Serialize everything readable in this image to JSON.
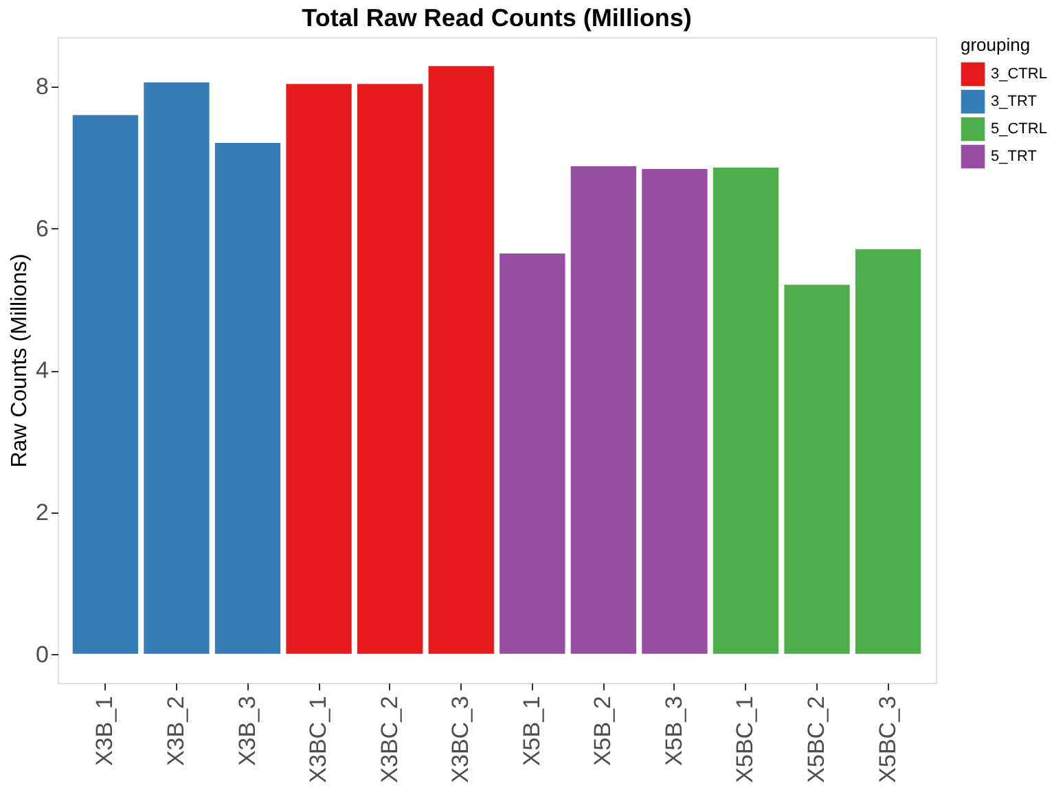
{
  "chart_data": {
    "type": "bar",
    "title": "Total Raw Read Counts (Millions)",
    "ylabel": "Raw Counts (Millions)",
    "legend_title": "grouping",
    "categories": [
      "X3B_1",
      "X3B_2",
      "X3B_3",
      "X3BC_1",
      "X3BC_2",
      "X3BC_3",
      "X5B_1",
      "X5B_2",
      "X5B_3",
      "X5BC_1",
      "X5BC_2",
      "X5BC_3"
    ],
    "series": [
      {
        "name": "3_CTRL",
        "color": "#e41a1c",
        "values": [
          null,
          null,
          null,
          8.05,
          8.05,
          8.3,
          null,
          null,
          null,
          null,
          null,
          null
        ]
      },
      {
        "name": "3_TRT",
        "color": "#377eb8",
        "values": [
          7.61,
          8.07,
          7.22,
          null,
          null,
          null,
          null,
          null,
          null,
          null,
          null,
          null
        ]
      },
      {
        "name": "5_CTRL",
        "color": "#4daf4a",
        "values": [
          null,
          null,
          null,
          null,
          null,
          null,
          null,
          null,
          null,
          6.87,
          5.22,
          5.72
        ]
      },
      {
        "name": "5_TRT",
        "color": "#984ea3",
        "values": [
          null,
          null,
          null,
          null,
          null,
          null,
          5.66,
          6.89,
          6.85,
          null,
          null,
          null
        ]
      }
    ],
    "ylim": [
      -0.4,
      8.7
    ],
    "yticks": [
      0,
      2,
      4,
      6,
      8
    ],
    "grid": false,
    "legend": "right"
  }
}
